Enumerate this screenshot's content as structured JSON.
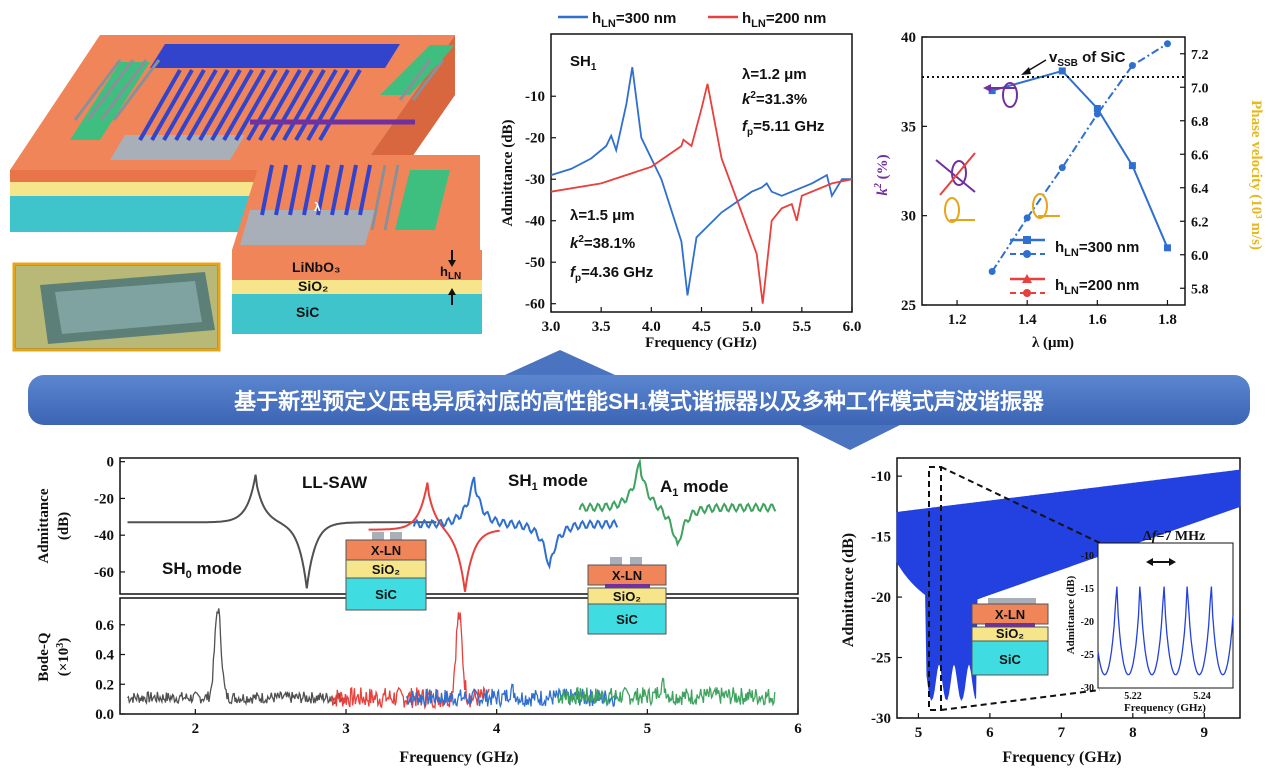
{
  "banner": {
    "text": "基于新型预定义压电异质衬底的高性能SH₁模式谐振器以及多种工作模式声波谐振器",
    "color": "#4472C4"
  },
  "schematic": {
    "layers": [
      "LiNbO₃",
      "SiO₂",
      "SiC"
    ],
    "lambda_label": "λ",
    "thickness_label": "hLN",
    "colors": {
      "linbo3": "#F0855A",
      "sio2": "#F6E58A",
      "sic": "#3FC4CC",
      "electrode": "#3344CC",
      "pad": "#3FBF7F"
    }
  },
  "chart_admittance": {
    "type": "line",
    "xlabel": "Frequency (GHz)",
    "ylabel": "Admittance (dB)",
    "xlim": [
      3.0,
      6.0
    ],
    "ylim": [
      -62,
      5
    ],
    "xticks": [
      "3.0",
      "3.5",
      "4.0",
      "4.5",
      "5.0",
      "5.5",
      "6.0"
    ],
    "yticks": [
      "-10",
      "-20",
      "-30",
      "-40",
      "-50",
      "-60"
    ],
    "mode_label": "SH₁",
    "legend": [
      {
        "name": "hLN=300 nm",
        "color": "#2F6FD0"
      },
      {
        "name": "hLN=200 nm",
        "color": "#E8403C"
      }
    ],
    "ann_200": [
      "λ=1.2 μm",
      "k²=31.3%",
      "fp=5.11 GHz"
    ],
    "ann_300": [
      "λ=1.5 μm",
      "k²=38.1%",
      "fp=4.36 GHz"
    ],
    "series": [
      {
        "name": "hLN=300 nm",
        "x": [
          3.0,
          3.2,
          3.4,
          3.55,
          3.6,
          3.65,
          3.75,
          3.81,
          3.9,
          4.1,
          4.3,
          4.36,
          4.45,
          4.7,
          5.0,
          5.1,
          5.15,
          5.2,
          5.3,
          5.6,
          5.75,
          5.8,
          5.9,
          6.0
        ],
        "y": [
          -29,
          -27.5,
          -25,
          -22,
          -19.5,
          -23,
          -12,
          -3,
          -20,
          -30,
          -45,
          -58,
          -44,
          -38,
          -33,
          -32,
          -31,
          -33,
          -34,
          -31,
          -29,
          -34,
          -30,
          -30
        ]
      },
      {
        "name": "hLN=200 nm",
        "x": [
          3.0,
          3.5,
          4.0,
          4.3,
          4.32,
          4.4,
          4.5,
          4.56,
          4.7,
          4.9,
          5.05,
          5.11,
          5.2,
          5.3,
          5.4,
          5.45,
          5.5,
          5.8,
          6.0
        ],
        "y": [
          -33,
          -31,
          -27,
          -22,
          -20.5,
          -22,
          -13,
          -7,
          -25,
          -38,
          -48,
          -60,
          -40,
          -37,
          -36,
          -40,
          -34,
          -31,
          -30
        ]
      }
    ]
  },
  "chart_k2": {
    "type": "line",
    "xlabel": "λ (μm)",
    "ylabel_left": "k² (%)",
    "ylabel_right": "Phase velocity (10³ m/s)",
    "xlim": [
      1.1,
      1.85
    ],
    "ylim_left": [
      25,
      40
    ],
    "ylim_right": [
      5.7,
      7.3
    ],
    "xticks": [
      "1.2",
      "1.4",
      "1.6",
      "1.8"
    ],
    "yticks_left": [
      "25",
      "30",
      "35",
      "40"
    ],
    "yticks_right": [
      "5.8",
      "6.0",
      "6.2",
      "6.4",
      "6.6",
      "6.8",
      "7.0",
      "7.2"
    ],
    "vssb_label": "vSSB of SiC",
    "vssb_value": 7.12,
    "legend": [
      {
        "name": "hLN=300 nm",
        "color": "#2F6FD0"
      },
      {
        "name": "hLN=200 nm",
        "color": "#E8403C"
      }
    ],
    "k2_300": {
      "x": [
        1.3,
        1.5,
        1.6,
        1.7,
        1.8
      ],
      "y": [
        37.0,
        38.1,
        36.0,
        32.8,
        28.2
      ]
    },
    "vp_300": {
      "x": [
        1.3,
        1.4,
        1.5,
        1.6,
        1.7,
        1.8
      ],
      "y": [
        5.9,
        6.22,
        6.52,
        6.84,
        7.13,
        7.26
      ]
    }
  },
  "chart_modes": {
    "type": "line",
    "xlabel": "Frequency (GHz)",
    "ylabel_top": [
      "Admittance",
      "(dB)"
    ],
    "ylabel_bottom": [
      "Bode-Q",
      "(×10³)"
    ],
    "xlim": [
      1.5,
      6.0
    ],
    "xticks": [
      "2",
      "3",
      "4",
      "5",
      "6"
    ],
    "ylim_top": [
      -72,
      2
    ],
    "yticks_top": [
      "0",
      "-20",
      "-40",
      "-60"
    ],
    "ylim_bottom": [
      0,
      0.78
    ],
    "yticks_bottom": [
      "0.0",
      "0.2",
      "0.4",
      "0.6"
    ],
    "modes": [
      "SH₀ mode",
      "LL-SAW",
      "SH₁ mode",
      "A₁ mode"
    ],
    "stack_labels": [
      "X-LN",
      "SiO₂",
      "SiC"
    ],
    "colors": {
      "SH0": "#505050",
      "LLSAW": "#E8403C",
      "SH1": "#2F6FD0",
      "A1": "#3FA35F"
    }
  },
  "chart_a1": {
    "type": "area",
    "xlabel": "Frequency (GHz)",
    "ylabel": "Admittance (dB)",
    "xlim": [
      4.7,
      9.5
    ],
    "ylim": [
      -30,
      -8.5
    ],
    "xticks": [
      "5",
      "6",
      "7",
      "8",
      "9"
    ],
    "yticks": [
      "-10",
      "-15",
      "-20",
      "-25",
      "-30"
    ],
    "color": "#2340E0",
    "inset": {
      "xlabel": "Frequency (GHz)",
      "ylabel": "Admittance (dB)",
      "xticks": [
        "5.22",
        "5.24"
      ],
      "yticks": [
        "-10",
        "-15",
        "-20",
        "-25",
        "-30"
      ],
      "delta_label": "Δf=7 MHz"
    },
    "stack_labels": [
      "X-LN",
      "SiO₂",
      "SiC"
    ]
  }
}
